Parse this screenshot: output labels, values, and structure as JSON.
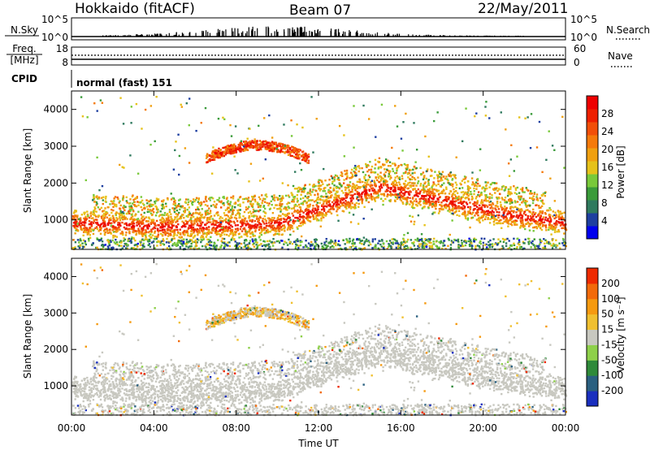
{
  "header": {
    "station": "Hokkaido (fitACF)",
    "beam": "Beam 07",
    "date": "22/May/2011"
  },
  "nsky_panel": {
    "left_label": "N.Sky",
    "right_label": "N.Search",
    "left_ticks": [
      "10^5",
      "10^0"
    ],
    "right_ticks": [
      "10^5",
      "10^0"
    ]
  },
  "freq_panel": {
    "label_line1": "Freq.",
    "label_line2": "[MHz]",
    "right_label": "Nave",
    "left_ticks": [
      "18",
      "8"
    ],
    "right_ticks": [
      "60",
      "0"
    ]
  },
  "cpid_panel": {
    "label": "CPID",
    "mode": "normal (fast) 151"
  },
  "chart_data": [
    {
      "type": "heatmap",
      "name": "power",
      "ylabel": "Slant Range [km]",
      "xlabel": "",
      "ylim": [
        200,
        4500
      ],
      "xlim": [
        0,
        24
      ],
      "y_ticks": [
        "1000",
        "2000",
        "3000",
        "4000"
      ],
      "colorbar": {
        "label": "Power [dB]",
        "ticks": [
          "4",
          "8",
          "12",
          "16",
          "20",
          "24",
          "28"
        ],
        "colors": [
          "#0000ee",
          "#1e3fa0",
          "#2f7a5e",
          "#3a9b3a",
          "#79c93a",
          "#e6c21a",
          "#f0a010",
          "#f57a0a",
          "#f24f08",
          "#ee2000",
          "#ee0000"
        ]
      }
    },
    {
      "type": "heatmap",
      "name": "velocity",
      "ylabel": "Slant Range [km]",
      "xlabel": "Time UT",
      "ylim": [
        200,
        4500
      ],
      "xlim": [
        0,
        24
      ],
      "y_ticks": [
        "1000",
        "2000",
        "3000",
        "4000"
      ],
      "x_ticks": [
        "00:00",
        "04:00",
        "08:00",
        "12:00",
        "16:00",
        "20:00",
        "00:00"
      ],
      "colorbar": {
        "label": "Velocity [m s⁻¹]",
        "ticks": [
          "200",
          "100",
          "50",
          "15",
          "-15",
          "-50",
          "-100",
          "-200"
        ],
        "colors": [
          "#1a2fbf",
          "#2a6080",
          "#2f8a3a",
          "#8ed04a",
          "#c8c8c0",
          "#f0c030",
          "#f59a10",
          "#f26a0a",
          "#ee2a00"
        ]
      }
    }
  ]
}
